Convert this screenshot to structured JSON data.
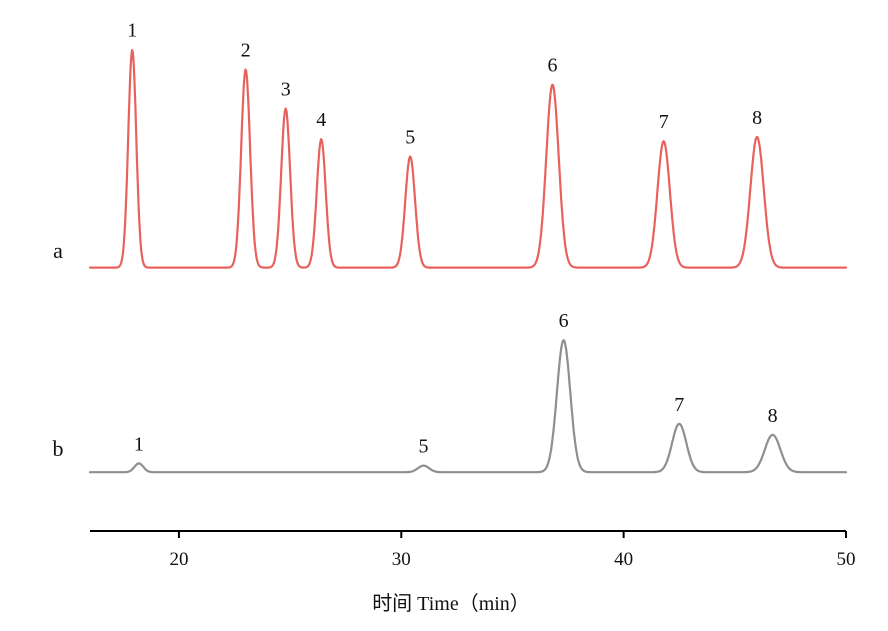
{
  "chart_data": {
    "type": "line",
    "title": "",
    "xlabel": "时间  Time（min）",
    "ylabel": "",
    "xlim": [
      16,
      50
    ],
    "xticks": [
      20,
      30,
      40,
      50
    ],
    "grid": false,
    "legend": "none",
    "series": [
      {
        "name": "a",
        "color": "#e8625d",
        "baseline": 0.02,
        "peaks": [
          {
            "label": "1",
            "x": 17.9,
            "height": 1.0,
            "width": 0.18
          },
          {
            "label": "2",
            "x": 23.0,
            "height": 0.91,
            "width": 0.2
          },
          {
            "label": "3",
            "x": 24.8,
            "height": 0.73,
            "width": 0.2
          },
          {
            "label": "4",
            "x": 26.4,
            "height": 0.59,
            "width": 0.2
          },
          {
            "label": "5",
            "x": 30.4,
            "height": 0.51,
            "width": 0.22
          },
          {
            "label": "6",
            "x": 36.8,
            "height": 0.84,
            "width": 0.28
          },
          {
            "label": "7",
            "x": 41.8,
            "height": 0.58,
            "width": 0.28
          },
          {
            "label": "8",
            "x": 46.0,
            "height": 0.6,
            "width": 0.3
          }
        ]
      },
      {
        "name": "b",
        "color": "#8e8e93",
        "baseline": 0.04,
        "peaks": [
          {
            "label": "1",
            "x": 18.2,
            "height": 0.04,
            "width": 0.2
          },
          {
            "label": "5",
            "x": 31.0,
            "height": 0.03,
            "width": 0.25
          },
          {
            "label": "6",
            "x": 37.3,
            "height": 0.6,
            "width": 0.3
          },
          {
            "label": "7",
            "x": 42.5,
            "height": 0.22,
            "width": 0.32
          },
          {
            "label": "8",
            "x": 46.7,
            "height": 0.17,
            "width": 0.35
          }
        ]
      }
    ]
  }
}
